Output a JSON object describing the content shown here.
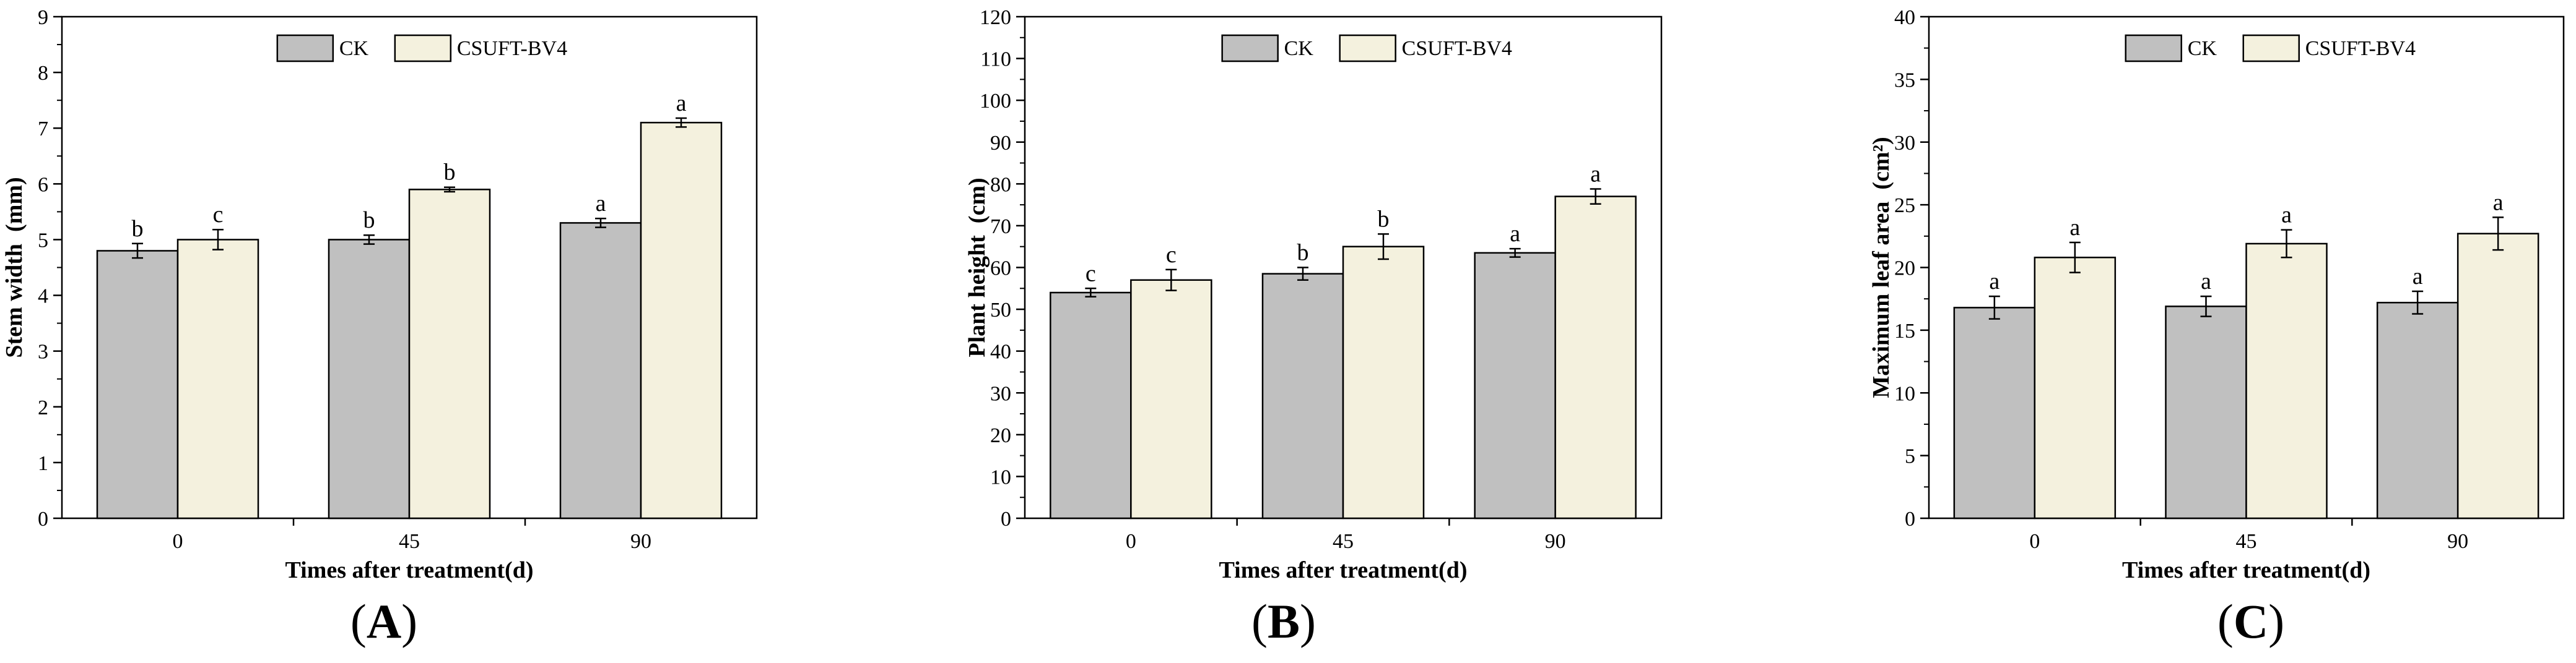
{
  "colors": {
    "ck": "#c0c0c0",
    "bv4": "#f4f1de",
    "stroke": "#000000"
  },
  "chart_data": [
    {
      "type": "bar",
      "panel_label": "A",
      "xlabel": "Times after treatment(d)",
      "ylabel": "Stem width  (mm)",
      "categories": [
        "0",
        "45",
        "90"
      ],
      "ylim": [
        0,
        9
      ],
      "yticks": [
        0,
        1,
        2,
        3,
        4,
        5,
        6,
        7,
        8,
        9
      ],
      "series": [
        {
          "name": "CK",
          "values": [
            4.8,
            5.0,
            5.3
          ],
          "errors": [
            0.13,
            0.08,
            0.08
          ],
          "letters": [
            "b",
            "b",
            "a"
          ]
        },
        {
          "name": "CSUFT-BV4",
          "values": [
            5.0,
            5.9,
            7.1
          ],
          "errors": [
            0.18,
            0.04,
            0.08
          ],
          "letters": [
            "c",
            "b",
            "a"
          ]
        }
      ]
    },
    {
      "type": "bar",
      "panel_label": "B",
      "xlabel": "Times after treatment(d)",
      "ylabel": "Plant height  (cm)",
      "categories": [
        "0",
        "45",
        "90"
      ],
      "ylim": [
        0,
        120
      ],
      "yticks": [
        0,
        10,
        20,
        30,
        40,
        50,
        60,
        70,
        80,
        90,
        100,
        110,
        120
      ],
      "series": [
        {
          "name": "CK",
          "values": [
            54,
            58.5,
            63.5
          ],
          "errors": [
            1.0,
            1.5,
            1.0
          ],
          "letters": [
            "c",
            "b",
            "a"
          ]
        },
        {
          "name": "CSUFT-BV4",
          "values": [
            57,
            65,
            77
          ],
          "errors": [
            2.5,
            3.0,
            1.8
          ],
          "letters": [
            "c",
            "b",
            "a"
          ]
        }
      ]
    },
    {
      "type": "bar",
      "panel_label": "C",
      "xlabel": "Times after treatment(d)",
      "ylabel": "Maximum leaf area  (cm²)",
      "categories": [
        "0",
        "45",
        "90"
      ],
      "ylim": [
        0,
        40
      ],
      "yticks": [
        0,
        5,
        10,
        15,
        20,
        25,
        30,
        35,
        40
      ],
      "series": [
        {
          "name": "CK",
          "values": [
            16.8,
            16.9,
            17.2
          ],
          "errors": [
            0.9,
            0.8,
            0.9
          ],
          "letters": [
            "a",
            "a",
            "a"
          ]
        },
        {
          "name": "CSUFT-BV4",
          "values": [
            20.8,
            21.9,
            22.7
          ],
          "errors": [
            1.2,
            1.1,
            1.3
          ],
          "letters": [
            "a",
            "a",
            "a"
          ]
        }
      ]
    }
  ]
}
